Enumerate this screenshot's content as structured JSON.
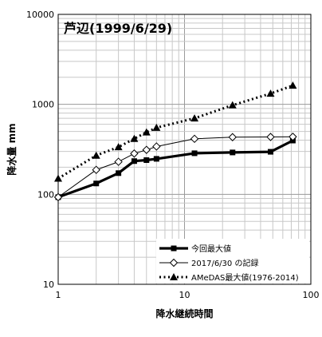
{
  "chart_data": {
    "type": "line",
    "title": "芦辺(1999/6/29)",
    "xlabel": "降水継続時間",
    "ylabel": "降水量 mm",
    "x_scale": "log",
    "y_scale": "log",
    "xlim": [
      1,
      100
    ],
    "ylim": [
      10,
      10000
    ],
    "x_ticks": [
      "1",
      "10",
      "100"
    ],
    "y_ticks": [
      "10",
      "100",
      "1000",
      "10000"
    ],
    "grid": true,
    "legend_position": "bottom-right",
    "x": [
      1,
      2,
      3,
      4,
      5,
      6,
      12,
      24,
      48,
      72
    ],
    "series": [
      {
        "name": "今回最大値",
        "color": "#000000",
        "style": "thick-solid",
        "marker": "filled-square",
        "values": [
          93,
          132,
          172,
          234,
          240,
          248,
          286,
          292,
          297,
          396
        ]
      },
      {
        "name": "2017/6/30 の記録",
        "color": "#000000",
        "style": "thin-solid",
        "marker": "open-diamond",
        "values": [
          93,
          187,
          230,
          284,
          312,
          340,
          414,
          432,
          434,
          436
        ]
      },
      {
        "name": "AMeDAS最大値(1976-2014)",
        "color": "#000000",
        "style": "dotted",
        "marker": "filled-triangle",
        "values": [
          150,
          270,
          335,
          415,
          490,
          550,
          700,
          980,
          1320,
          1620
        ]
      }
    ]
  }
}
